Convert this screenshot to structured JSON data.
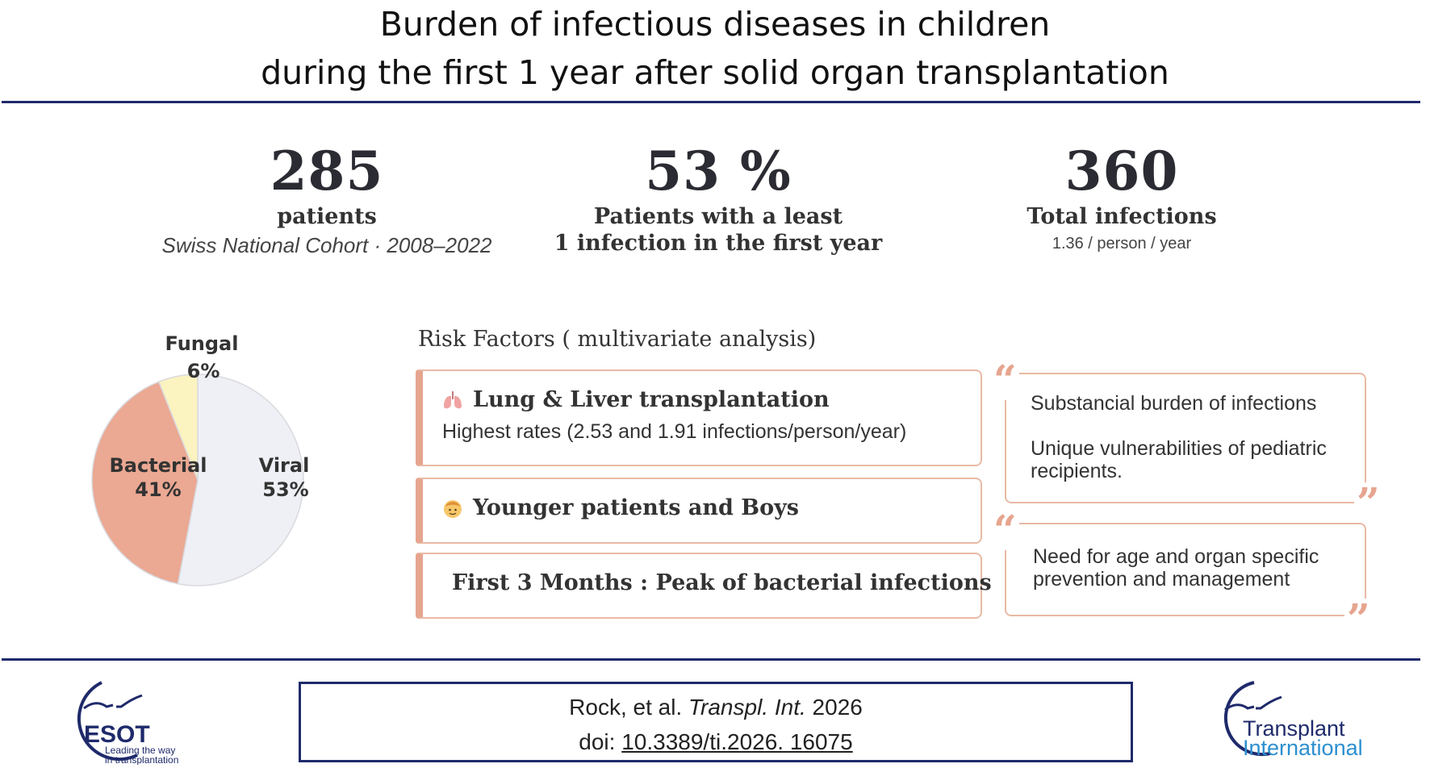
{
  "title": {
    "line1": "Burden of infectious diseases in children",
    "line2": "during the first 1 year after solid organ transplantation"
  },
  "stats": {
    "patients": {
      "value": "285",
      "label": "patients",
      "sub": "Swiss National Cohort ·  2008–2022"
    },
    "percent": {
      "value": "53 %",
      "label_line1": "Patients with a least",
      "label_line2": "1 infection in the first year"
    },
    "total": {
      "value": "360",
      "label": "Total infections",
      "sub": "1.36 / person / year"
    }
  },
  "chart_data": {
    "type": "pie",
    "slices": [
      {
        "label": "Viral",
        "value": 53,
        "color": "#eef0f5"
      },
      {
        "label": "Bacterial",
        "value": 41,
        "color": "#eba892"
      },
      {
        "label": "Fungal",
        "value": 6,
        "color": "#fbf3c0"
      }
    ],
    "slice_labels": {
      "viral": {
        "name": "Viral",
        "pct": "53%"
      },
      "bacterial": {
        "name": "Bacterial",
        "pct": "41%"
      },
      "fungal": {
        "name": "Fungal",
        "pct": "6%"
      }
    }
  },
  "risk_factors": {
    "title": "Risk Factors ( multivariate analysis)",
    "items": [
      {
        "icon": "lungs-icon",
        "title": "Lung & Liver transplantation",
        "desc": "Highest rates (2.53 and 1.91 infections/person/year)"
      },
      {
        "icon": "child-face-icon",
        "title": "Younger patients and  Boys"
      },
      {
        "icon": "calendar-icon",
        "title": "First 3 Months :  Peak of bacterial infections"
      }
    ]
  },
  "quotes": [
    {
      "lines": [
        "Substancial burden of infections",
        "",
        "Unique vulnerabilities of pediatric",
        "recipients."
      ]
    },
    {
      "lines": [
        "Need for age and organ specific",
        "prevention  and management"
      ]
    }
  ],
  "citation": {
    "authors": "Rock, et al. ",
    "journal": "Transpl.  Int.",
    "year": " 2026",
    "doi_label": "doi: ",
    "doi": "10.3389/ti.2026. 16075 "
  },
  "logos": {
    "esot": {
      "name": "ESOT",
      "tagline_line1": "Leading the way",
      "tagline_line2": "in transplantation"
    },
    "ti": {
      "line1": "Transplant",
      "line2": "International"
    }
  },
  "colors": {
    "navy": "#1f2a6b",
    "accent_salmon": "#e6a58f",
    "ti_blue": "#2c8fd0"
  }
}
